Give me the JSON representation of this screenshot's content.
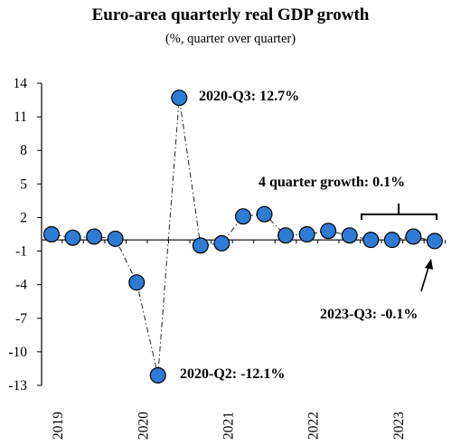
{
  "chart_data": {
    "type": "scatter",
    "title": "Euro-area quarterly real GDP growth",
    "subtitle": "(%, quarter over quarter)",
    "ylim": [
      -13,
      14
    ],
    "yticks": [
      "14",
      "11",
      "8",
      "5",
      "2",
      "-1",
      "-4",
      "-7",
      "-10",
      "-13"
    ],
    "x_tick_labels": [
      "2019",
      "2020",
      "2021",
      "2022",
      "2023"
    ],
    "x": [
      "2019-Q1",
      "2019-Q2",
      "2019-Q3",
      "2019-Q4",
      "2020-Q1",
      "2020-Q2",
      "2020-Q3",
      "2020-Q4",
      "2021-Q1",
      "2021-Q2",
      "2021-Q3",
      "2021-Q4",
      "2022-Q1",
      "2022-Q2",
      "2022-Q3",
      "2022-Q4",
      "2023-Q1",
      "2023-Q2",
      "2023-Q3"
    ],
    "values": [
      0.5,
      0.2,
      0.3,
      0.1,
      -3.8,
      -12.1,
      12.7,
      -0.5,
      -0.3,
      2.1,
      2.3,
      0.4,
      0.5,
      0.8,
      0.4,
      0.0,
      0.0,
      0.3,
      -0.1
    ],
    "connector": "dash-dot",
    "grid": false,
    "marker_color": "#2e7bd6",
    "annotations": {
      "q3_2020": "2020-Q3: 12.7%",
      "q2_2020": "2020-Q2: -12.1%",
      "four_quarter": "4 quarter growth:  0.1%",
      "q3_2023": "2023-Q3: -0.1%"
    }
  }
}
